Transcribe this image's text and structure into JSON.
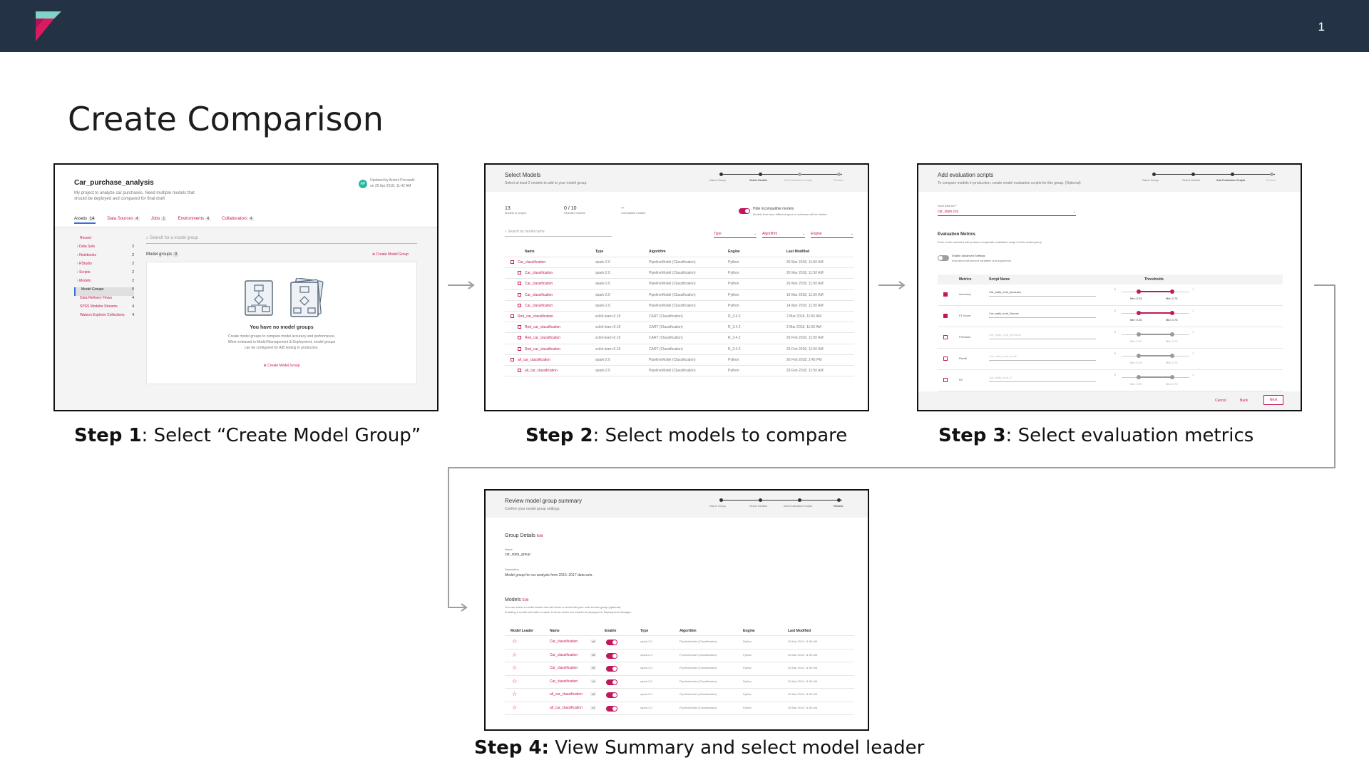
{
  "page_number": "1",
  "title": "Create Comparison",
  "colors": {
    "header": "#233245",
    "accent": "#c2185b",
    "connector": "#9e9e9e"
  },
  "steps": [
    {
      "label": "Step 1",
      "text": ": Select “Create Model Group”"
    },
    {
      "label": "Step 2",
      "text": ": Select models to compare"
    },
    {
      "label": "Step 3",
      "text": ": Select evaluation metrics"
    },
    {
      "label": "Step 4:",
      "text": " View Summary and select model leader"
    }
  ],
  "shot1": {
    "project": "Car_purchase_analysis",
    "description": "My project to analyze car purchases. Need multiple models that should be deployed and compared for final draft",
    "updated_by": "Updated by Antoni Porowski",
    "updated_on": "on 25 Apr 2018, 11:42 AM",
    "avatar": "AP",
    "tabs": [
      "Assets",
      "Data Sources",
      "Jobs",
      "Environments",
      "Collaborators"
    ],
    "tab_counts": [
      "14",
      "4",
      "1",
      "4",
      "4"
    ],
    "sidebar": [
      "Recent",
      "Data Sets",
      "Notebooks",
      "RStudio",
      "Scripts",
      "Models",
      "Model Groups",
      "Data Refinery Flows",
      "SPSS Modeler Streams",
      "Watson Explorer Collections"
    ],
    "sidebar_counts": [
      "",
      "2",
      "2",
      "2",
      "2",
      "2",
      "0",
      "4",
      "4",
      "4"
    ],
    "search_placeholder": "Search for a model group",
    "section": "Model groups",
    "section_count": "0",
    "create_link": "Create Model Group",
    "empty_title": "You have no model groups",
    "empty_text": "Create model groups to compare model accuracy and performance. When released in Model Management & Deployment, model groups can be configured for A/B testing in production.",
    "empty_cta": "Create Model Group"
  },
  "shot2": {
    "title": "Select Models",
    "subtitle": "Select at least 2 models to add to your model group.",
    "progress": [
      "Name Group",
      "Select Models",
      "Add Evaluation Scripts",
      "Review"
    ],
    "stats": [
      {
        "value": "13",
        "label": "Models in project"
      },
      {
        "value": "0 / 10",
        "label": "Selected models"
      },
      {
        "value": "--",
        "label": "Compatible models"
      }
    ],
    "toggle_label": "Hide incompatible models",
    "toggle_sub": "Models that have different types or schemas will be hidden.",
    "search_placeholder": "Search by model name",
    "filters": [
      "Type",
      "Algorithm",
      "Engine"
    ],
    "columns": [
      "Name",
      "Type",
      "Algorithm",
      "Engine",
      "Last Modified"
    ],
    "rows": [
      {
        "name": "Car_classification",
        "child": false,
        "type": "spark-2.0",
        "algo": "PipelineModel (Classification)",
        "engine": "Python",
        "date": "26 Mar 2018, 11:50 AM"
      },
      {
        "name": "Car_classification",
        "child": true,
        "type": "spark-2.0",
        "algo": "PipelineModel (Classification)",
        "engine": "Python",
        "date": "26 Mar 2018, 11:50 AM"
      },
      {
        "name": "Car_classification",
        "child": true,
        "type": "spark-2.0",
        "algo": "PipelineModel (Classification)",
        "engine": "Python",
        "date": "26 Mar 2018, 11:50 AM"
      },
      {
        "name": "Car_classification",
        "child": true,
        "type": "spark-2.0",
        "algo": "PipelineModel (Classification)",
        "engine": "Python",
        "date": "19 Mar 2018, 11:50 AM"
      },
      {
        "name": "Car_classification",
        "child": true,
        "type": "spark-2.0",
        "algo": "PipelineModel (Classification)",
        "engine": "Python",
        "date": "14 Mar 2018, 11:50 AM"
      },
      {
        "name": "Red_car_classification",
        "child": false,
        "type": "scikit-learn-0.19",
        "algo": "CART (Classification)",
        "engine": "R_3.4.2",
        "date": "2 Mar 2018, 11:50 AM"
      },
      {
        "name": "Red_car_classification",
        "child": true,
        "type": "scikit-learn-0.19",
        "algo": "CART (Classification)",
        "engine": "R_3.4.2",
        "date": "2 Mar 2018, 11:50 AM"
      },
      {
        "name": "Red_car_classification",
        "child": true,
        "type": "scikit-learn-0.19",
        "algo": "CART (Classification)",
        "engine": "R_3.4.2",
        "date": "26 Feb 2018, 11:50 AM"
      },
      {
        "name": "Red_car_classification",
        "child": true,
        "type": "scikit-learn-0.19",
        "algo": "CART (Classification)",
        "engine": "R_3.4.2",
        "date": "26 Feb 2018, 11:50 AM"
      },
      {
        "name": "all_car_classification",
        "child": false,
        "type": "spark-2.0",
        "algo": "PipelineModel (Classification)",
        "engine": "Python",
        "date": "26 Feb 2018, 2:45 PM"
      },
      {
        "name": "all_car_classification",
        "child": true,
        "type": "spark-2.0",
        "algo": "PipelineModel (Classification)",
        "engine": "Python",
        "date": "26 Feb 2018, 11:50 AM"
      }
    ]
  },
  "shot3": {
    "title": "Add evaluation scripts",
    "subtitle": "To compare models in production, create model evaluation scripts for this group. (Optional)",
    "progress": [
      "Name Group",
      "Select Models",
      "Add Evaluation Scripts",
      "Review"
    ],
    "input_label": "Input data set *",
    "input_value": "car_stats.csv",
    "metrics_title": "Evaluation Metrics",
    "metrics_sub": "Each metric selected will produce a separate evaluation script for this model group.",
    "advanced_label": "Enable advanced Settings",
    "advanced_sub": "Includes environment variables and arguments.",
    "columns": [
      "Metrics",
      "Script Name",
      "Thresholds"
    ],
    "rows": [
      {
        "metric": "Accuracy",
        "script": "Car_stats_eval_accuracy",
        "active": true,
        "min": "Min: 0.25",
        "mid": "Mid: 0.75",
        "lo": "0",
        "hi": "1"
      },
      {
        "metric": "F1 Score",
        "script": "Car_stats_eval_f1score",
        "active": true,
        "min": "Min: 0.25",
        "mid": "Mid: 0.75",
        "lo": "0",
        "hi": "1"
      },
      {
        "metric": "Precision",
        "script": "Car_stats_eval_precision",
        "active": false,
        "min": "Min: 0.25",
        "mid": "Mid: 0.75",
        "lo": "0",
        "hi": "1"
      },
      {
        "metric": "Recall",
        "script": "Car_stats_eval_recall",
        "active": false,
        "min": "Min: 0.25",
        "mid": "Mid: 0.75",
        "lo": "0",
        "hi": "1"
      },
      {
        "metric": "R2",
        "script": "Car_stats_eval_r2",
        "active": false,
        "min": "Min: 0.25",
        "mid": "Mid: 0.75",
        "lo": "0",
        "hi": "1"
      }
    ],
    "buttons": [
      "Cancel",
      "Back",
      "Next"
    ]
  },
  "shot4": {
    "title": "Review model group summary",
    "subtitle": "Confirm your model group settings.",
    "progress": [
      "Name Group",
      "Select Models",
      "Add Evaluation Scripts",
      "Review"
    ],
    "group_details": "Group Details",
    "edit": "Edit",
    "name_label": "Name",
    "name_value": "car_stats_group",
    "desc_label": "Description",
    "desc_value": "Model group for car analysis from 2016–2017 data sets.",
    "models_title": "Models",
    "models_text1": "You can select a model leader that will return a result with your web service group (optional).",
    "models_text2": "Enabling a model will make it easier to know which one should be deployed in Deployment Manager.",
    "columns": [
      "Model Leader",
      "Name",
      "Enable",
      "Type",
      "Algorithm",
      "Engine",
      "Last Modified"
    ],
    "rows": [
      {
        "name": "Car_classification",
        "ver": "v4",
        "type": "spark-2.0",
        "algo": "PipelineModel (Classification)",
        "engine": "Python",
        "date": "26 Mar 2018, 11:50 AM"
      },
      {
        "name": "Car_classification",
        "ver": "v3",
        "type": "spark-2.0",
        "algo": "PipelineModel (Classification)",
        "engine": "Python",
        "date": "26 Mar 2018, 11:50 AM"
      },
      {
        "name": "Car_classification",
        "ver": "v2",
        "type": "spark-2.0",
        "algo": "PipelineModel (Classification)",
        "engine": "Python",
        "date": "26 Mar 2018, 11:50 AM"
      },
      {
        "name": "Car_classification",
        "ver": "v1",
        "type": "spark-2.0",
        "algo": "PipelineModel (Classification)",
        "engine": "Python",
        "date": "26 Mar 2018, 11:50 AM"
      },
      {
        "name": "all_car_classification",
        "ver": "v2",
        "type": "spark-2.0",
        "algo": "PipelineModel (Classification)",
        "engine": "Python",
        "date": "26 Mar 2018, 11:50 AM"
      },
      {
        "name": "all_car_classification",
        "ver": "v1",
        "type": "spark-2.0",
        "algo": "PipelineModel (Classification)",
        "engine": "Python",
        "date": "26 Mar 2018, 11:50 AM"
      }
    ]
  }
}
